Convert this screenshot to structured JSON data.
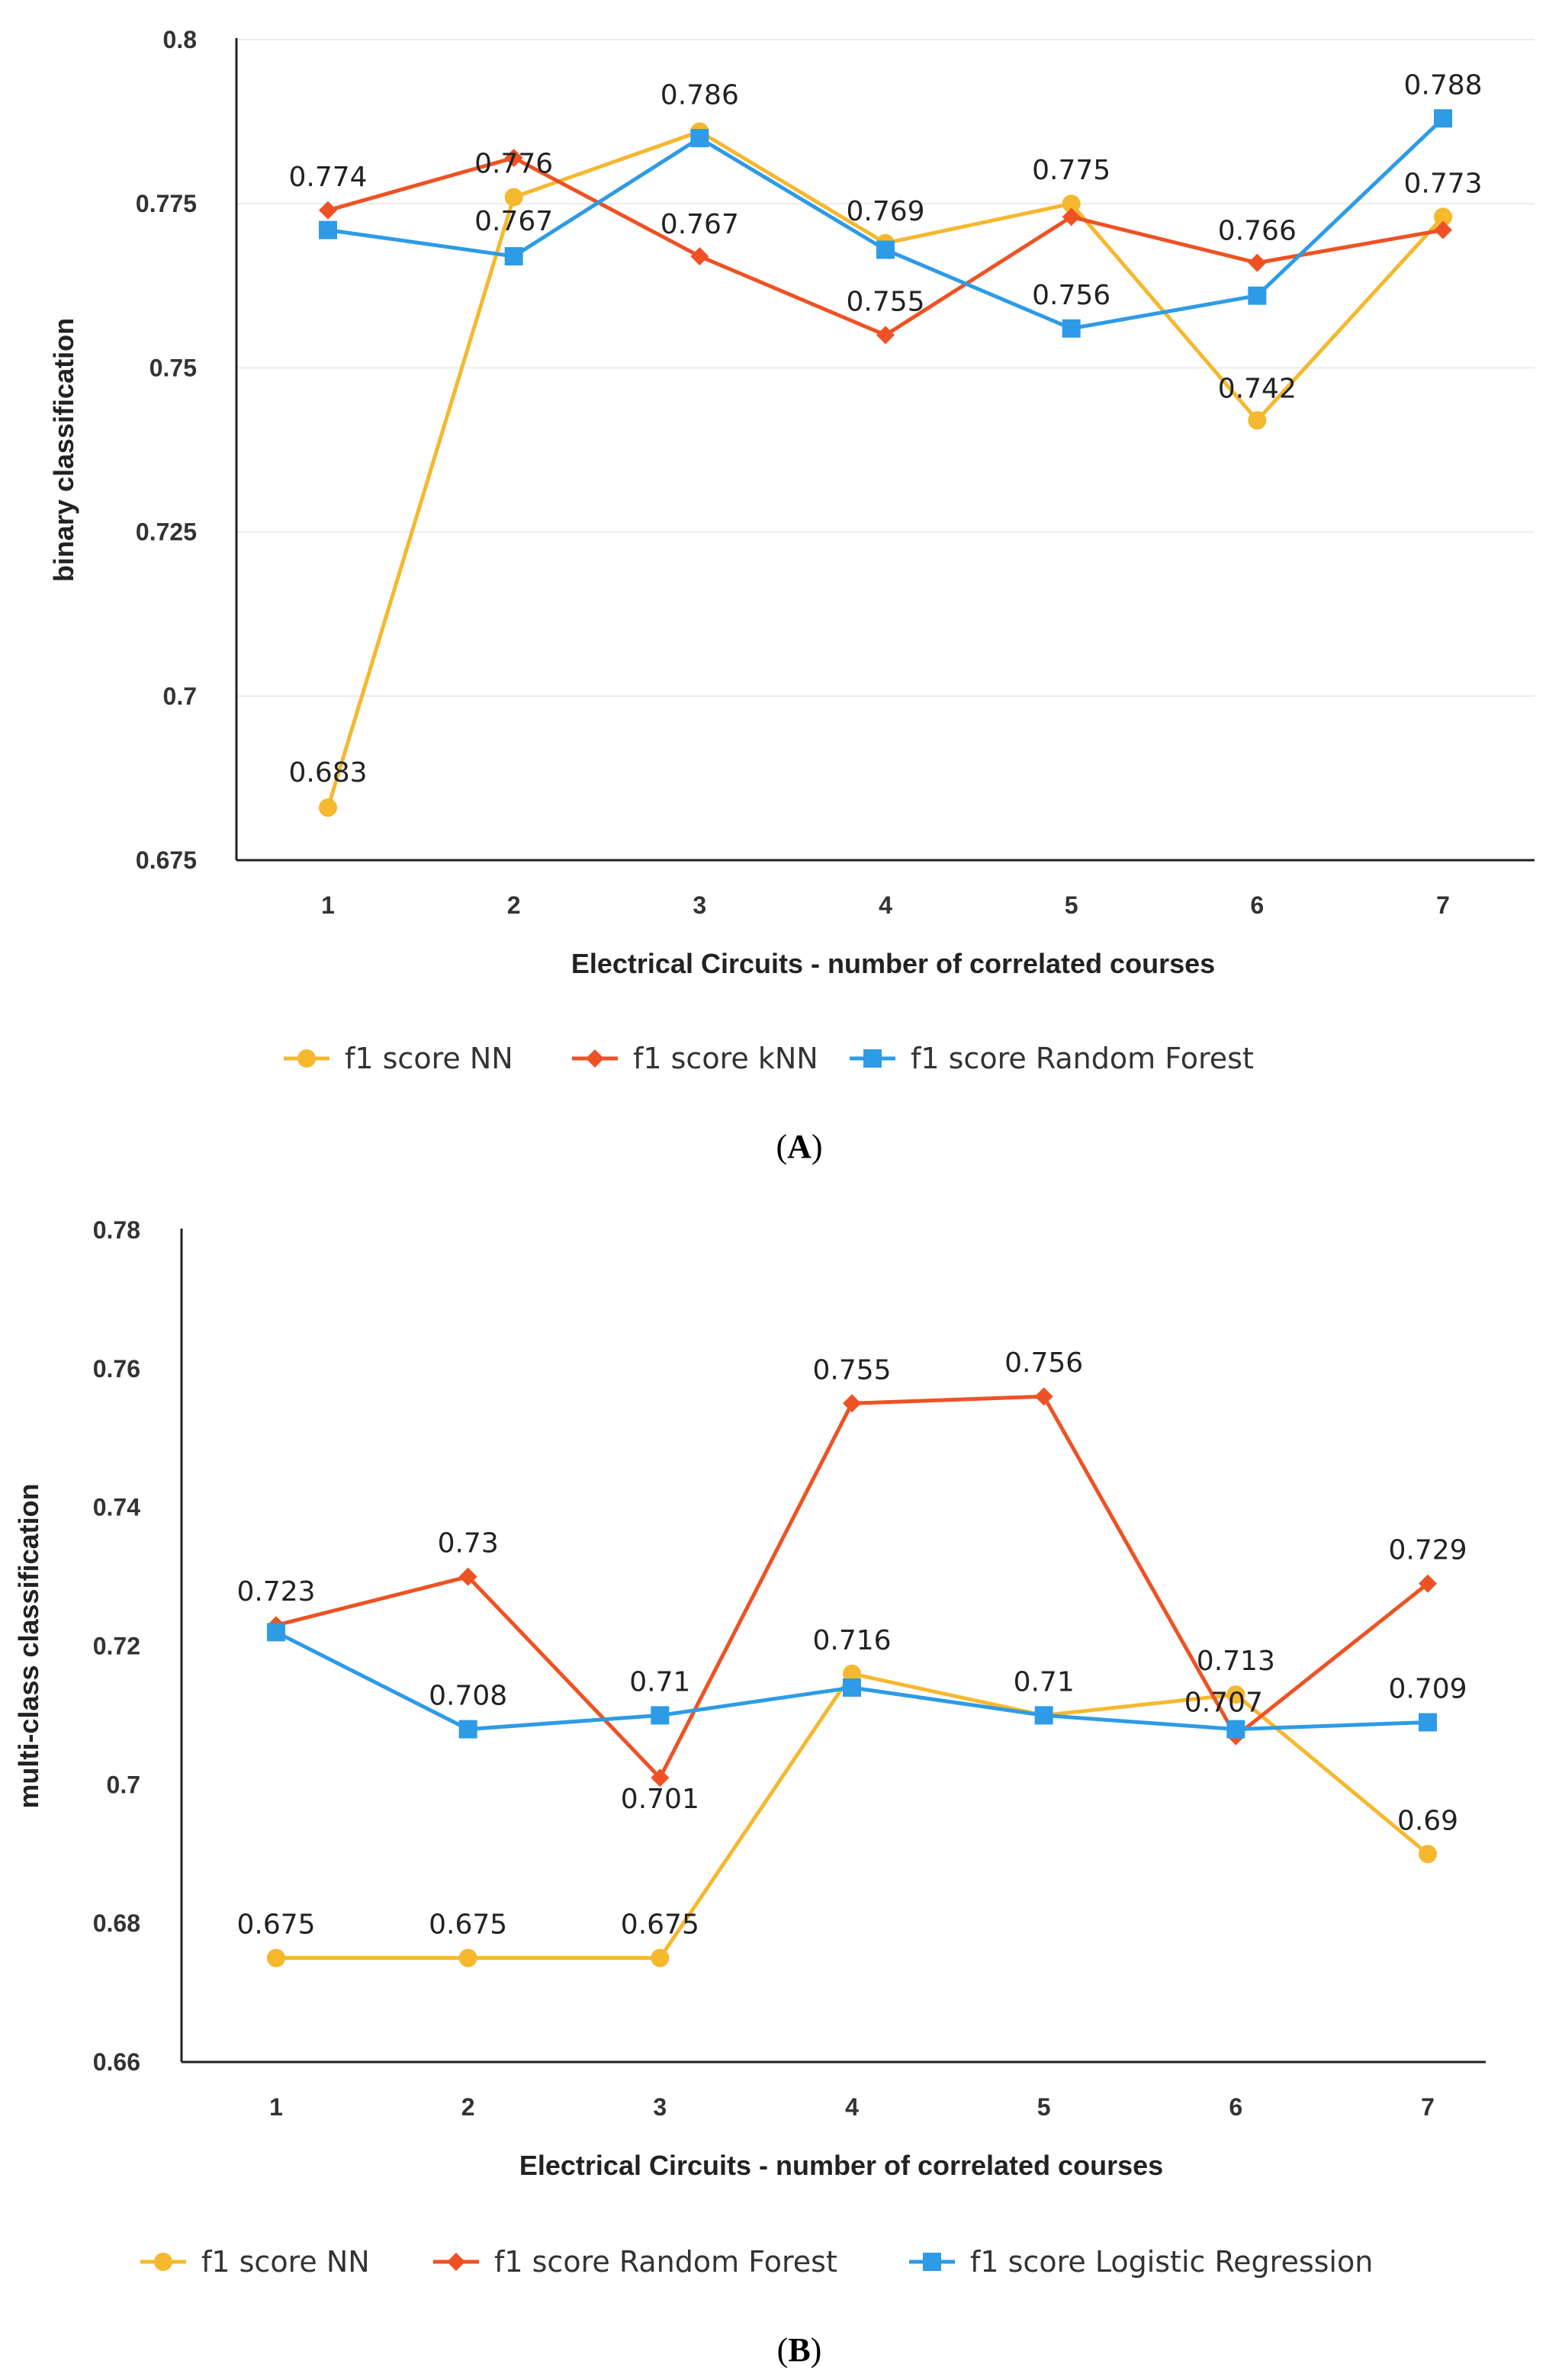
{
  "chart_data": [
    {
      "type": "line",
      "panel_label": "A",
      "xlabel": "Electrical Circuits - number of correlated courses",
      "ylabel": "binary classification",
      "categories": [
        "1",
        "2",
        "3",
        "4",
        "5",
        "6",
        "7"
      ],
      "ylim": [
        0.675,
        0.8
      ],
      "yticks": [
        "0.675",
        "0.7",
        "0.725",
        "0.75",
        "0.775",
        "0.8"
      ],
      "grid": true,
      "legend_position": "bottom",
      "series": [
        {
          "name": "f1 score NN",
          "color": "#f5b82e",
          "marker": "circle",
          "values": [
            0.683,
            0.776,
            0.786,
            0.769,
            0.775,
            0.742,
            0.773
          ],
          "labels": [
            "0.683",
            "0.776",
            "0.786",
            "0.769",
            "0.775",
            "0.742",
            "0.773"
          ],
          "label_show": [
            true,
            true,
            true,
            true,
            true,
            true,
            true
          ]
        },
        {
          "name": "f1 score kNN",
          "color": "#ee5224",
          "marker": "diamond",
          "values": [
            0.774,
            0.782,
            0.767,
            0.755,
            0.773,
            0.766,
            0.771
          ],
          "labels": [
            "0.774",
            "",
            "0.767",
            "0.755",
            "",
            "0.766",
            ""
          ],
          "label_show": [
            true,
            false,
            true,
            true,
            false,
            true,
            false
          ]
        },
        {
          "name": "f1 score Random Forest",
          "color": "#2e9be6",
          "marker": "square",
          "values": [
            0.771,
            0.767,
            0.785,
            0.768,
            0.756,
            0.761,
            0.788
          ],
          "labels": [
            "",
            "0.767",
            "",
            "",
            "0.756",
            "",
            "0.788"
          ],
          "label_show": [
            false,
            true,
            false,
            false,
            true,
            false,
            true
          ]
        }
      ]
    },
    {
      "type": "line",
      "panel_label": "B",
      "xlabel": "Electrical Circuits - number of correlated courses",
      "ylabel": "multi-class classification",
      "categories": [
        "1",
        "2",
        "3",
        "4",
        "5",
        "6",
        "7"
      ],
      "ylim": [
        0.66,
        0.78
      ],
      "yticks": [
        "0.66",
        "0.68",
        "0.7",
        "0.72",
        "0.74",
        "0.76",
        "0.78"
      ],
      "grid": false,
      "legend_position": "bottom",
      "series": [
        {
          "name": "f1 score NN",
          "color": "#f5b82e",
          "marker": "circle",
          "values": [
            0.675,
            0.675,
            0.675,
            0.716,
            0.71,
            0.713,
            0.69
          ],
          "labels": [
            "0.675",
            "0.675",
            "0.675",
            "0.716",
            "0.71",
            "0.713",
            "0.69"
          ],
          "label_show": [
            true,
            true,
            true,
            true,
            true,
            true,
            true
          ]
        },
        {
          "name": "f1 score Random Forest",
          "color": "#ee5224",
          "marker": "diamond",
          "values": [
            0.723,
            0.73,
            0.701,
            0.755,
            0.756,
            0.707,
            0.729
          ],
          "labels": [
            "0.723",
            "0.73",
            "0.701",
            "0.755",
            "0.756",
            "0.707",
            "0.729"
          ],
          "label_show": [
            true,
            true,
            true,
            true,
            true,
            true,
            true
          ]
        },
        {
          "name": "f1 score Logistic Regression",
          "color": "#2e9be6",
          "marker": "square",
          "values": [
            0.722,
            0.708,
            0.71,
            0.714,
            0.71,
            0.708,
            0.709
          ],
          "labels": [
            "",
            "0.708",
            "0.71",
            "",
            "",
            "",
            "0.709"
          ],
          "label_show": [
            false,
            true,
            true,
            false,
            false,
            false,
            true
          ]
        }
      ]
    }
  ]
}
